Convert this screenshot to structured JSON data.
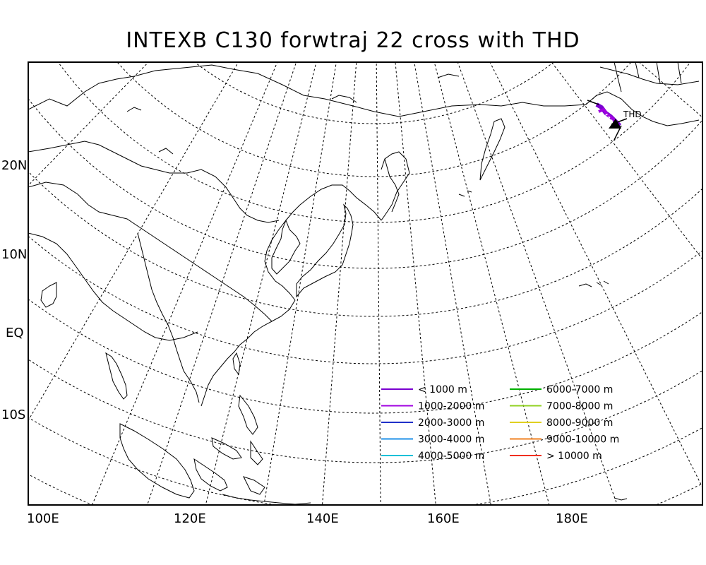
{
  "title": "INTEXB C130 forwtraj 22 cross with THD",
  "lat_labels": [
    "20N",
    "10N",
    "EQ",
    "10S"
  ],
  "lon_labels": [
    "100E",
    "120E",
    "140E",
    "160E",
    "180E"
  ],
  "site_label": "THD",
  "legend": [
    {
      "label": "< 1000 m",
      "color": "#7a00d0"
    },
    {
      "label": "1000-2000 m",
      "color": "#a000e0"
    },
    {
      "label": "2000-3000 m",
      "color": "#2030c8"
    },
    {
      "label": "3000-4000 m",
      "color": "#1e90e8"
    },
    {
      "label": "4000-5000 m",
      "color": "#00c0d8"
    },
    {
      "label": "6000-7000 m",
      "color": "#00b000"
    },
    {
      "label": "7000-8000 m",
      "color": "#90d020"
    },
    {
      "label": "8000-9000 m",
      "color": "#e0d020"
    },
    {
      "label": "9000-10000 m",
      "color": "#f08020"
    },
    {
      "label": "> 10000 m",
      "color": "#f03020"
    }
  ]
}
